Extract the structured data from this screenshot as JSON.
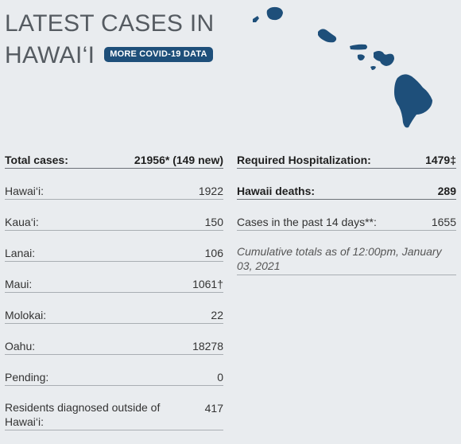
{
  "header": {
    "title_line1": "LATEST CASES IN",
    "title_line2": "HAWAI‘I",
    "covid_link": "MORE COVID-19 DATA"
  },
  "map": {
    "island_color": "#1e4f7a",
    "icon": "hawaii-islands-map"
  },
  "left_table": [
    {
      "label": "Total cases:",
      "value": "21956* (149 new)",
      "bold": true
    },
    {
      "label": "Hawai‘i:",
      "value": "1922"
    },
    {
      "label": "Kaua‘i:",
      "value": "150"
    },
    {
      "label": "Lanai:",
      "value": "106"
    },
    {
      "label": "Maui:",
      "value": "1061†"
    },
    {
      "label": "Molokai:",
      "value": "22"
    },
    {
      "label": "Oahu:",
      "value": "18278"
    },
    {
      "label": "Pending:",
      "value": "0"
    },
    {
      "label": "Residents diagnosed outside of Hawai‘i:",
      "value": "417"
    }
  ],
  "right_table": [
    {
      "label": "Required Hospitalization:",
      "value": "1479‡",
      "bold": true
    },
    {
      "label": "Hawaii deaths:",
      "value": "289",
      "bold": true
    },
    {
      "label": "Cases in the past 14 days**:",
      "value": "1655"
    }
  ],
  "note": "Cumulative totals as of 12:00pm, January 03, 2021"
}
